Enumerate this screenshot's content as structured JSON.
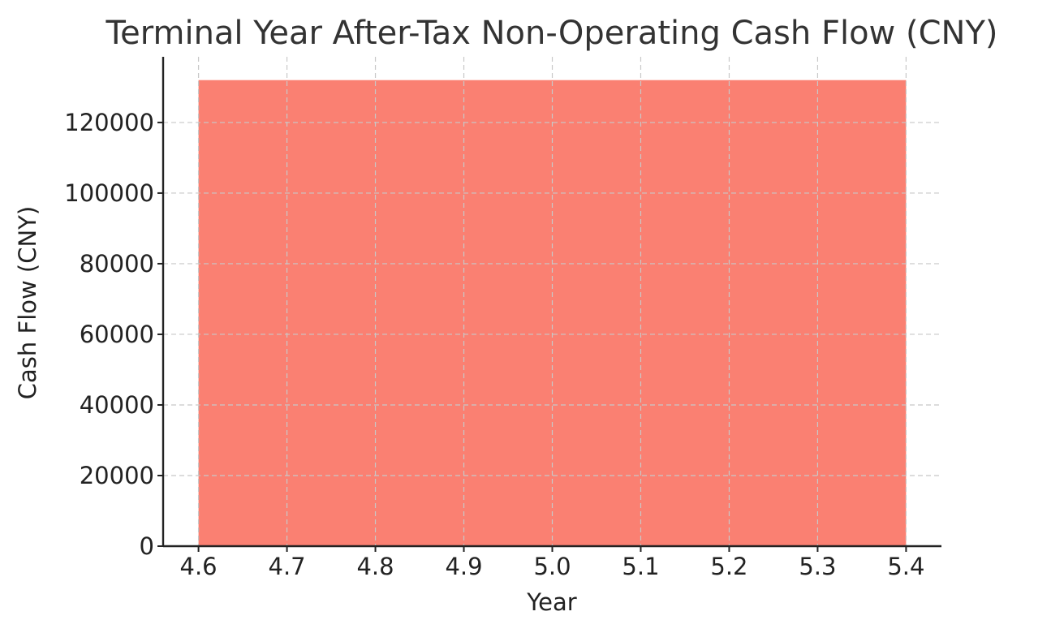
{
  "chart_data": {
    "type": "bar",
    "title": "Terminal Year After-Tax Non-Operating Cash Flow (CNY)",
    "xlabel": "Year",
    "ylabel": "Cash Flow (CNY)",
    "categories": [
      5
    ],
    "values": [
      132000
    ],
    "bar_width": 0.8,
    "bar_color": "#fa8072",
    "xlim": [
      4.56,
      5.44
    ],
    "ylim": [
      0,
      138600
    ],
    "xticks": [
      4.6,
      4.7,
      4.8,
      4.9,
      5.0,
      5.1,
      5.2,
      5.3,
      5.4
    ],
    "xtick_labels": [
      "4.6",
      "4.7",
      "4.8",
      "4.9",
      "5.0",
      "5.1",
      "5.2",
      "5.3",
      "5.4"
    ],
    "yticks": [
      0,
      20000,
      40000,
      60000,
      80000,
      100000,
      120000
    ],
    "ytick_labels": [
      "0",
      "20000",
      "40000",
      "60000",
      "80000",
      "100000",
      "120000"
    ],
    "grid": true,
    "legend": "none"
  }
}
